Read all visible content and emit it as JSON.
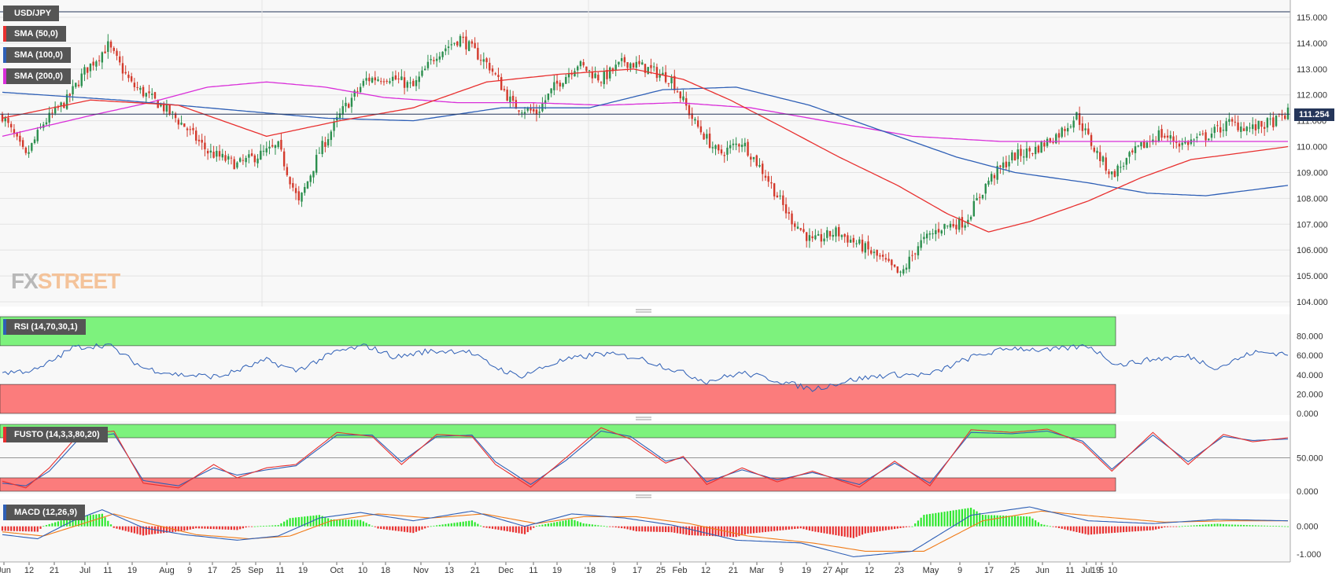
{
  "chart_data": [
    {
      "type": "candlestick",
      "title": "USD/JPY",
      "current_price_label": "111.254",
      "y_ticks": [
        "115.000",
        "114.000",
        "113.000",
        "112.000",
        "111.000",
        "110.000",
        "109.000",
        "108.000",
        "107.000",
        "106.000",
        "105.000",
        "104.000"
      ],
      "ylim": [
        104.0,
        115.4
      ],
      "x_ticks": [
        "Jun",
        "12",
        "21",
        "Jul",
        "11",
        "19",
        "Aug",
        "9",
        "17",
        "25",
        "Sep",
        "11",
        "19",
        "Oct",
        "10",
        "18",
        "Nov",
        "13",
        "21",
        "Dec",
        "11",
        "19",
        "'18",
        "9",
        "17",
        "25",
        "Feb",
        "12",
        "21",
        "Mar",
        "9",
        "19",
        "27",
        "Apr",
        "12",
        "23",
        "May",
        "9",
        "17",
        "25",
        "Jun",
        "11",
        "19",
        "Jul",
        "5",
        "10"
      ],
      "indicators": [
        {
          "name": "SMA (50,0)",
          "color": "#e8302f"
        },
        {
          "name": "SMA (100,0)",
          "color": "#2e5fb6"
        },
        {
          "name": "SMA (200,0)",
          "color": "#d92ed9"
        }
      ],
      "anchors": [
        [
          0,
          111.2
        ],
        [
          8,
          109.6
        ],
        [
          14,
          110.9
        ],
        [
          22,
          111.8
        ],
        [
          28,
          112.9
        ],
        [
          36,
          113.9
        ],
        [
          44,
          112.4
        ],
        [
          54,
          111.6
        ],
        [
          62,
          110.8
        ],
        [
          70,
          109.8
        ],
        [
          80,
          109.3
        ],
        [
          94,
          110.0
        ],
        [
          101,
          107.8
        ],
        [
          108,
          109.8
        ],
        [
          116,
          111.4
        ],
        [
          124,
          112.6
        ],
        [
          132,
          112.7
        ],
        [
          140,
          112.3
        ],
        [
          148,
          113.6
        ],
        [
          156,
          114.2
        ],
        [
          166,
          113.1
        ],
        [
          174,
          111.6
        ],
        [
          182,
          111.3
        ],
        [
          188,
          112.3
        ],
        [
          196,
          113.2
        ],
        [
          204,
          112.6
        ],
        [
          212,
          113.3
        ],
        [
          220,
          113.0
        ],
        [
          228,
          112.6
        ],
        [
          236,
          110.9
        ],
        [
          244,
          109.7
        ],
        [
          252,
          110.2
        ],
        [
          260,
          108.9
        ],
        [
          268,
          107.3
        ],
        [
          276,
          106.3
        ],
        [
          284,
          106.7
        ],
        [
          292,
          106.2
        ],
        [
          300,
          105.6
        ],
        [
          306,
          105.0
        ],
        [
          312,
          106.2
        ],
        [
          320,
          106.9
        ],
        [
          328,
          107.1
        ],
        [
          336,
          108.7
        ],
        [
          344,
          109.6
        ],
        [
          352,
          109.9
        ],
        [
          360,
          110.5
        ],
        [
          366,
          111.2
        ],
        [
          372,
          109.9
        ],
        [
          378,
          108.9
        ],
        [
          386,
          109.8
        ],
        [
          394,
          110.5
        ],
        [
          402,
          110.1
        ],
        [
          410,
          110.4
        ],
        [
          418,
          110.9
        ],
        [
          426,
          110.7
        ],
        [
          434,
          111.0
        ],
        [
          438,
          111.3
        ]
      ],
      "sma_50_points": [
        [
          0,
          111.1
        ],
        [
          30,
          111.8
        ],
        [
          60,
          111.6
        ],
        [
          90,
          110.4
        ],
        [
          115,
          111.0
        ],
        [
          140,
          111.5
        ],
        [
          165,
          112.5
        ],
        [
          190,
          112.8
        ],
        [
          215,
          113.0
        ],
        [
          232,
          112.6
        ],
        [
          248,
          111.8
        ],
        [
          265,
          110.8
        ],
        [
          285,
          109.6
        ],
        [
          305,
          108.5
        ],
        [
          322,
          107.4
        ],
        [
          336,
          106.7
        ],
        [
          350,
          107.1
        ],
        [
          370,
          107.9
        ],
        [
          388,
          108.8
        ],
        [
          405,
          109.5
        ],
        [
          425,
          109.8
        ],
        [
          438,
          110.0
        ]
      ],
      "sma_100_points": [
        [
          0,
          112.1
        ],
        [
          40,
          111.8
        ],
        [
          80,
          111.4
        ],
        [
          110,
          111.1
        ],
        [
          140,
          111.0
        ],
        [
          170,
          111.5
        ],
        [
          200,
          111.5
        ],
        [
          225,
          112.2
        ],
        [
          250,
          112.3
        ],
        [
          275,
          111.6
        ],
        [
          300,
          110.6
        ],
        [
          325,
          109.6
        ],
        [
          345,
          109.0
        ],
        [
          370,
          108.6
        ],
        [
          390,
          108.2
        ],
        [
          410,
          108.1
        ],
        [
          438,
          108.5
        ]
      ],
      "sma_200_points": [
        [
          0,
          110.4
        ],
        [
          30,
          111.2
        ],
        [
          50,
          111.7
        ],
        [
          70,
          112.3
        ],
        [
          90,
          112.5
        ],
        [
          110,
          112.3
        ],
        [
          130,
          111.9
        ],
        [
          155,
          111.7
        ],
        [
          180,
          111.7
        ],
        [
          205,
          111.6
        ],
        [
          230,
          111.7
        ],
        [
          255,
          111.5
        ],
        [
          280,
          111.0
        ],
        [
          310,
          110.4
        ],
        [
          340,
          110.2
        ],
        [
          380,
          110.2
        ],
        [
          438,
          110.2
        ]
      ]
    },
    {
      "type": "line",
      "title": "RSI (14,70,30,1)",
      "ylim": [
        0,
        100
      ],
      "y_ticks": [
        "80.000",
        "60.000",
        "40.000",
        "20.000",
        "0.000"
      ],
      "zones": [
        {
          "from": 70,
          "to": 100,
          "color": "#7df27d"
        },
        {
          "from": 0,
          "to": 30,
          "color": "#fb7c7c"
        }
      ],
      "anchors": [
        [
          0,
          42
        ],
        [
          12,
          45
        ],
        [
          24,
          68
        ],
        [
          36,
          71
        ],
        [
          48,
          47
        ],
        [
          60,
          40
        ],
        [
          74,
          38
        ],
        [
          90,
          55
        ],
        [
          100,
          44
        ],
        [
          114,
          64
        ],
        [
          124,
          70
        ],
        [
          134,
          58
        ],
        [
          144,
          64
        ],
        [
          158,
          65
        ],
        [
          168,
          48
        ],
        [
          176,
          38
        ],
        [
          190,
          54
        ],
        [
          204,
          62
        ],
        [
          216,
          58
        ],
        [
          230,
          44
        ],
        [
          240,
          33
        ],
        [
          252,
          42
        ],
        [
          264,
          34
        ],
        [
          276,
          25
        ],
        [
          290,
          35
        ],
        [
          302,
          40
        ],
        [
          316,
          40
        ],
        [
          330,
          58
        ],
        [
          344,
          68
        ],
        [
          356,
          65
        ],
        [
          370,
          70
        ],
        [
          380,
          50
        ],
        [
          392,
          56
        ],
        [
          404,
          59
        ],
        [
          414,
          47
        ],
        [
          426,
          63
        ],
        [
          438,
          62
        ]
      ],
      "color": "#2e5fb6"
    },
    {
      "type": "line",
      "title": "FUSTO (14,3,3,80,20)",
      "ylim": [
        0,
        100
      ],
      "y_ticks": [
        "50.000",
        "0.000"
      ],
      "zones": [
        {
          "from": 80,
          "to": 100,
          "color": "#7df27d"
        },
        {
          "from": 0,
          "to": 20,
          "color": "#fb7c7c"
        }
      ],
      "fast_anchors": [
        [
          0,
          15
        ],
        [
          8,
          5
        ],
        [
          16,
          35
        ],
        [
          26,
          85
        ],
        [
          38,
          90
        ],
        [
          48,
          12
        ],
        [
          60,
          5
        ],
        [
          72,
          40
        ],
        [
          80,
          20
        ],
        [
          90,
          35
        ],
        [
          100,
          40
        ],
        [
          114,
          88
        ],
        [
          126,
          82
        ],
        [
          136,
          40
        ],
        [
          148,
          85
        ],
        [
          160,
          82
        ],
        [
          168,
          40
        ],
        [
          180,
          6
        ],
        [
          192,
          50
        ],
        [
          204,
          95
        ],
        [
          214,
          78
        ],
        [
          226,
          42
        ],
        [
          232,
          52
        ],
        [
          240,
          10
        ],
        [
          252,
          35
        ],
        [
          264,
          14
        ],
        [
          276,
          30
        ],
        [
          292,
          6
        ],
        [
          304,
          45
        ],
        [
          316,
          8
        ],
        [
          330,
          92
        ],
        [
          344,
          88
        ],
        [
          356,
          93
        ],
        [
          368,
          72
        ],
        [
          378,
          30
        ],
        [
          392,
          88
        ],
        [
          404,
          40
        ],
        [
          416,
          85
        ],
        [
          426,
          74
        ],
        [
          438,
          80
        ]
      ],
      "slow_anchors": [
        [
          0,
          12
        ],
        [
          8,
          8
        ],
        [
          16,
          30
        ],
        [
          26,
          78
        ],
        [
          38,
          86
        ],
        [
          48,
          16
        ],
        [
          60,
          8
        ],
        [
          72,
          35
        ],
        [
          80,
          24
        ],
        [
          90,
          32
        ],
        [
          100,
          38
        ],
        [
          114,
          84
        ],
        [
          126,
          84
        ],
        [
          136,
          44
        ],
        [
          148,
          82
        ],
        [
          160,
          84
        ],
        [
          168,
          44
        ],
        [
          180,
          10
        ],
        [
          192,
          46
        ],
        [
          204,
          90
        ],
        [
          214,
          82
        ],
        [
          226,
          45
        ],
        [
          232,
          50
        ],
        [
          240,
          14
        ],
        [
          252,
          32
        ],
        [
          264,
          17
        ],
        [
          276,
          28
        ],
        [
          292,
          10
        ],
        [
          304,
          42
        ],
        [
          316,
          12
        ],
        [
          330,
          88
        ],
        [
          344,
          86
        ],
        [
          356,
          90
        ],
        [
          368,
          75
        ],
        [
          378,
          33
        ],
        [
          392,
          84
        ],
        [
          404,
          44
        ],
        [
          416,
          82
        ],
        [
          426,
          76
        ],
        [
          438,
          78
        ]
      ],
      "fast_color": "#e8302f",
      "slow_color": "#2e5fb6"
    },
    {
      "type": "bar",
      "title": "MACD (12,26,9)",
      "ylim": [
        -1.2,
        0.9
      ],
      "y_ticks": [
        "0.000",
        "-1.000"
      ],
      "macd_anchors": [
        [
          0,
          -0.3
        ],
        [
          12,
          -0.45
        ],
        [
          24,
          0.2
        ],
        [
          34,
          0.6
        ],
        [
          48,
          -0.05
        ],
        [
          62,
          -0.3
        ],
        [
          80,
          -0.5
        ],
        [
          94,
          -0.35
        ],
        [
          108,
          0.3
        ],
        [
          122,
          0.5
        ],
        [
          140,
          0.2
        ],
        [
          160,
          0.55
        ],
        [
          178,
          0.0
        ],
        [
          194,
          0.45
        ],
        [
          212,
          0.3
        ],
        [
          228,
          0.05
        ],
        [
          250,
          -0.5
        ],
        [
          272,
          -0.6
        ],
        [
          290,
          -1.1
        ],
        [
          310,
          -0.9
        ],
        [
          330,
          0.4
        ],
        [
          350,
          0.7
        ],
        [
          370,
          0.2
        ],
        [
          392,
          0.1
        ],
        [
          414,
          0.25
        ],
        [
          438,
          0.2
        ]
      ],
      "signal_anchors": [
        [
          0,
          -0.2
        ],
        [
          14,
          -0.35
        ],
        [
          26,
          0.05
        ],
        [
          38,
          0.45
        ],
        [
          50,
          0.1
        ],
        [
          66,
          -0.3
        ],
        [
          84,
          -0.45
        ],
        [
          98,
          -0.35
        ],
        [
          112,
          0.2
        ],
        [
          128,
          0.45
        ],
        [
          146,
          0.3
        ],
        [
          164,
          0.45
        ],
        [
          182,
          0.1
        ],
        [
          198,
          0.35
        ],
        [
          216,
          0.35
        ],
        [
          234,
          0.1
        ],
        [
          254,
          -0.35
        ],
        [
          276,
          -0.6
        ],
        [
          294,
          -0.9
        ],
        [
          314,
          -0.9
        ],
        [
          334,
          0.2
        ],
        [
          354,
          0.55
        ],
        [
          374,
          0.35
        ],
        [
          396,
          0.15
        ],
        [
          418,
          0.2
        ],
        [
          438,
          0.2
        ]
      ],
      "macd_color": "#2e5fb6",
      "signal_color": "#f07b18",
      "hist_pos_color": "#2ee82e",
      "hist_neg_color": "#e8302f"
    }
  ]
}
